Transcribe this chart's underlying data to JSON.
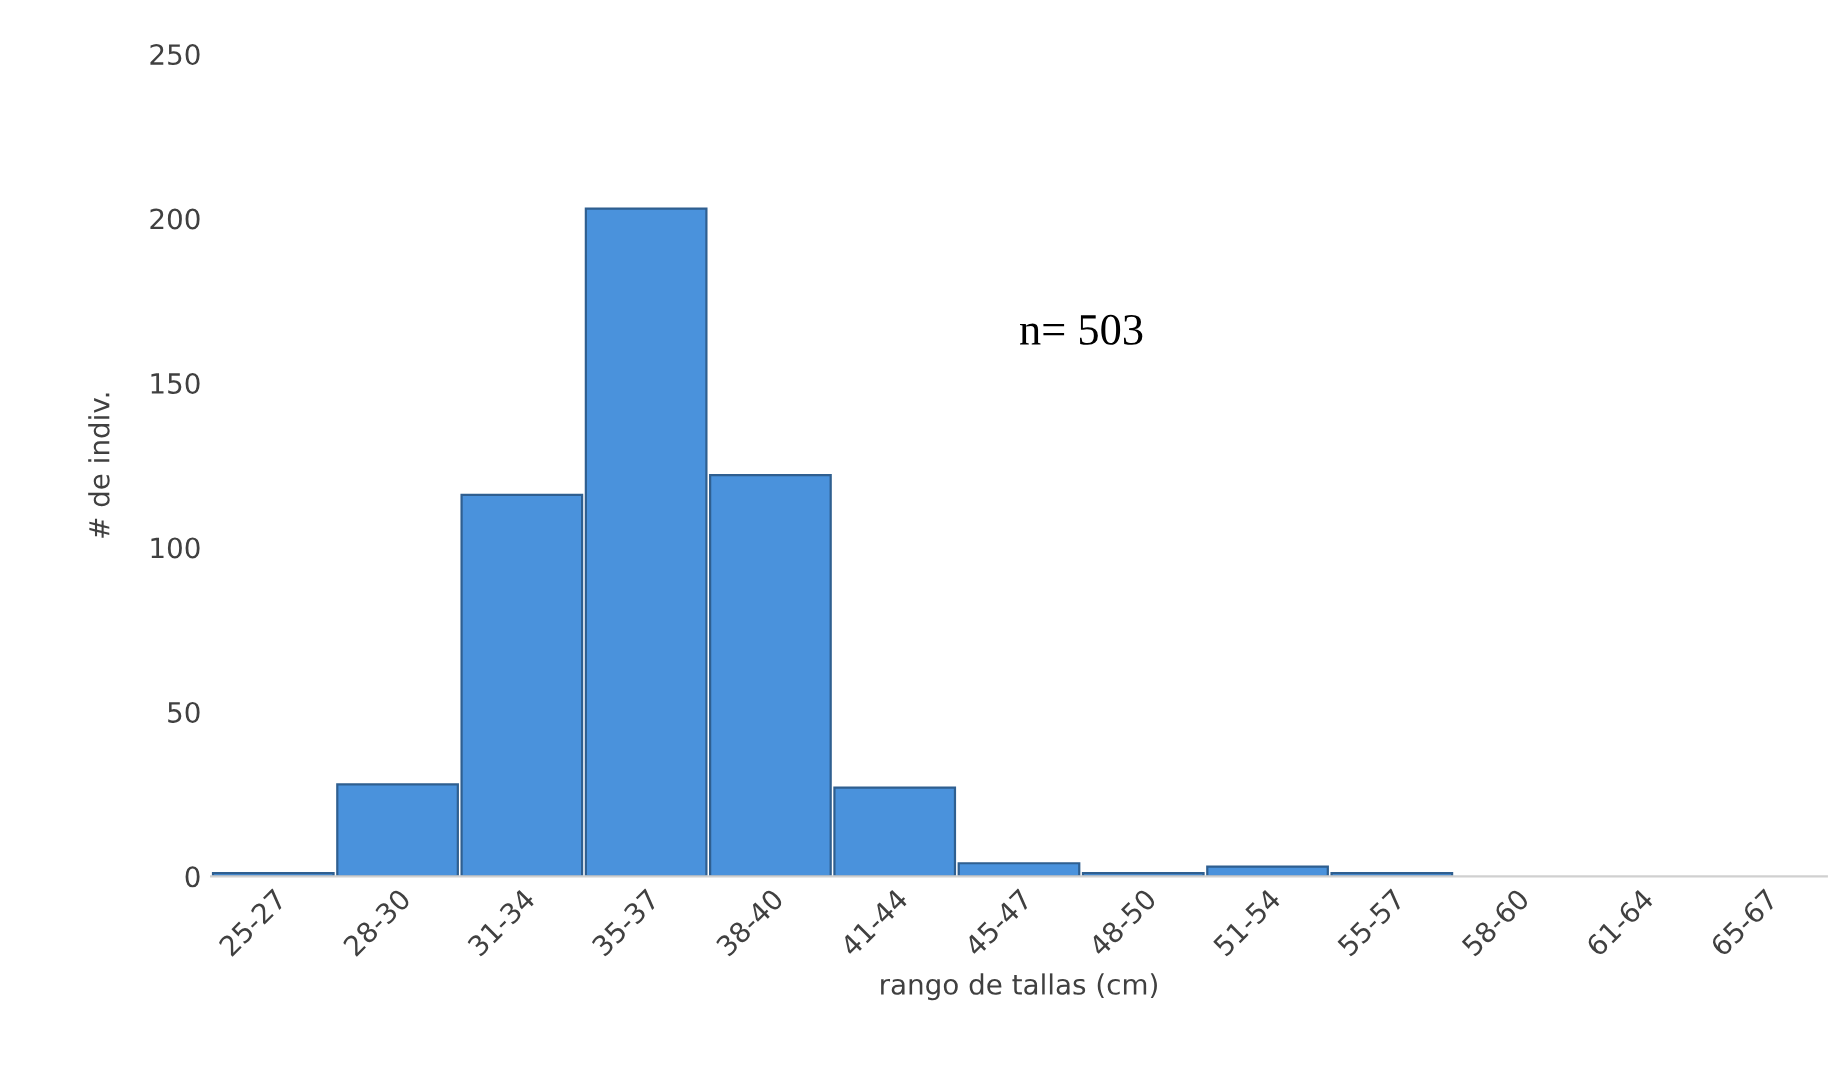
{
  "chart_data": {
    "type": "bar",
    "xlabel": "rango de tallas (cm)",
    "ylabel": "# de indiv.",
    "categories": [
      "25-27",
      "28-30",
      "31-34",
      "35-37",
      "38-40",
      "41-44",
      "45-47",
      "48-50",
      "51-54",
      "55-57",
      "58-60",
      "61-64",
      "65-67"
    ],
    "values": [
      1,
      28,
      116,
      203,
      122,
      27,
      4,
      1,
      3,
      1,
      0,
      0,
      0
    ],
    "color": "#4a92dc",
    "ylim": [
      0,
      250
    ],
    "yticks": [
      0,
      50,
      100,
      150,
      200,
      250
    ],
    "annotations": [
      "n= 503"
    ]
  }
}
